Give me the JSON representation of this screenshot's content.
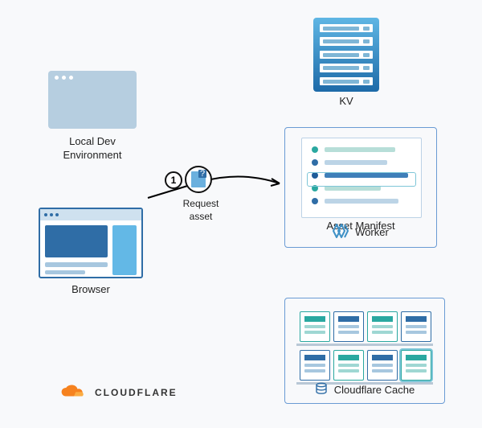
{
  "diagram": {
    "type": "flowchart",
    "background_color": "#f8f9fb",
    "label_fontsize": 13,
    "label_color": "#222222"
  },
  "localdev": {
    "label": "Local Dev\nEnvironment",
    "fill_color": "#b6cee0"
  },
  "browser": {
    "label": "Browser",
    "border_color": "#2f6da6",
    "topbar_color": "#cfe1ef",
    "hero_color": "#2f6da6",
    "side_color": "#63b8e6",
    "bar_color": "#a7c7df"
  },
  "request": {
    "label": "Request\nasset",
    "step_number": "1",
    "arrow_color": "#000000",
    "badge_border": "#111111",
    "doc_fill": "#6bb0de",
    "doc_accent": "#2f6da6"
  },
  "kv": {
    "label": "KV",
    "gradient_top": "#5fb6e4",
    "gradient_bottom": "#1d6aa8",
    "rows": 5
  },
  "worker": {
    "box_border": "#6a9bd4",
    "manifest_label": "Asset Manifest",
    "footer_label": "Worker",
    "footer_icon_color": "#3f91c6",
    "manifest_rows": [
      {
        "dot": "#2aa8a0",
        "bar": "#b7ded8",
        "width": 88
      },
      {
        "dot": "#2f6da6",
        "bar": "#bcd4e6",
        "width": 78
      },
      {
        "dot": "#1e5c99",
        "bar": "#3f7fb9",
        "width": 104
      },
      {
        "dot": "#2aa8a0",
        "bar": "#b7ded8",
        "width": 70
      },
      {
        "dot": "#2f6da6",
        "bar": "#bcd4e6",
        "width": 92
      }
    ],
    "highlight_row_index": 2,
    "highlight_border": "#7ec6d8"
  },
  "cache": {
    "box_border": "#6a9bd4",
    "label": "Cloudflare Cache",
    "shelf_color": "#b9c8d6",
    "cards": [
      {
        "row": 0,
        "col": 0,
        "variant": "teal"
      },
      {
        "row": 0,
        "col": 1,
        "variant": "blue"
      },
      {
        "row": 0,
        "col": 2,
        "variant": "teal"
      },
      {
        "row": 0,
        "col": 3,
        "variant": "blue"
      },
      {
        "row": 1,
        "col": 0,
        "variant": "blue"
      },
      {
        "row": 1,
        "col": 1,
        "variant": "teal"
      },
      {
        "row": 1,
        "col": 2,
        "variant": "blue"
      },
      {
        "row": 1,
        "col": 3,
        "variant": "teal",
        "selected": true
      }
    ],
    "teal_color": "#2aa8a0",
    "blue_color": "#2f6da6",
    "selected_outline": "#7ec6d8"
  },
  "logo": {
    "text": "CLOUDFLARE",
    "orange": "#f6821f",
    "orange_light": "#fbac42"
  }
}
